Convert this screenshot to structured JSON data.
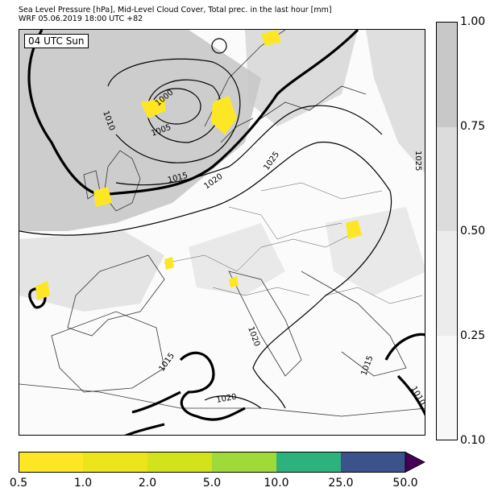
{
  "header": {
    "line1": "Sea Level Pressure [hPa], Mid-Level Cloud Cover, Total prec. in the last hour [mm]",
    "line2": "WRF 05.06.2019 18:00 UTC +82"
  },
  "map": {
    "time_label": "04 UTC Sun",
    "isobar_labels": [
      "1000",
      "1005",
      "1010",
      "1015",
      "1020",
      "1025",
      "1020",
      "1015",
      "1020",
      "1015",
      "1010",
      "1025"
    ]
  },
  "cloud_colorbar": {
    "ticks": [
      "1.00",
      "0.75",
      "0.50",
      "0.25",
      "0.10"
    ],
    "colors": [
      "#c8c8c8",
      "#dcdcdc",
      "#ececec",
      "#f8f8f8"
    ]
  },
  "precip_colorbar": {
    "ticks": [
      "0.5",
      "1.0",
      "2.0",
      "5.0",
      "10.0",
      "25.0",
      "50.0"
    ],
    "colors": [
      "#fde725",
      "#ece51b",
      "#d2e21b",
      "#a0da39",
      "#2db27d",
      "#3b528b",
      "#440154"
    ]
  }
}
